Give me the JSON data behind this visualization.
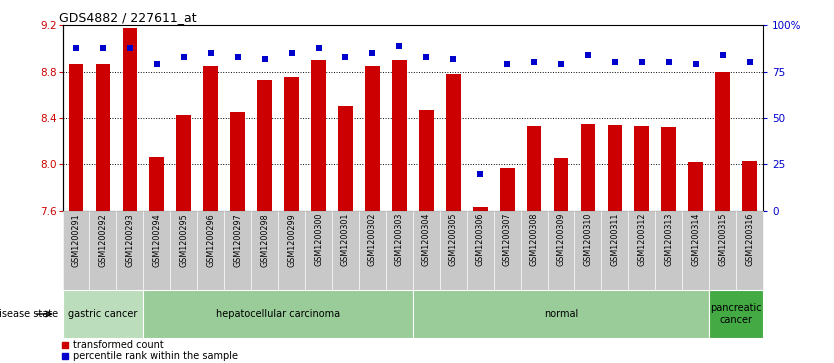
{
  "title": "GDS4882 / 227611_at",
  "samples": [
    "GSM1200291",
    "GSM1200292",
    "GSM1200293",
    "GSM1200294",
    "GSM1200295",
    "GSM1200296",
    "GSM1200297",
    "GSM1200298",
    "GSM1200299",
    "GSM1200300",
    "GSM1200301",
    "GSM1200302",
    "GSM1200303",
    "GSM1200304",
    "GSM1200305",
    "GSM1200306",
    "GSM1200307",
    "GSM1200308",
    "GSM1200309",
    "GSM1200310",
    "GSM1200311",
    "GSM1200312",
    "GSM1200313",
    "GSM1200314",
    "GSM1200315",
    "GSM1200316"
  ],
  "transformed_count": [
    8.87,
    8.87,
    9.18,
    8.06,
    8.43,
    8.85,
    8.45,
    8.73,
    8.75,
    8.9,
    8.5,
    8.85,
    8.9,
    8.47,
    8.78,
    7.63,
    7.97,
    8.33,
    8.05,
    8.35,
    8.34,
    8.33,
    8.32,
    8.02,
    8.8,
    8.03
  ],
  "percentile_rank": [
    88,
    88,
    88,
    79,
    83,
    85,
    83,
    82,
    85,
    88,
    83,
    85,
    89,
    83,
    82,
    20,
    79,
    80,
    79,
    84,
    80,
    80,
    80,
    79,
    84,
    80
  ],
  "ylim_left": [
    7.6,
    9.2
  ],
  "ylim_right": [
    0,
    100
  ],
  "yticks_left": [
    7.6,
    8.0,
    8.4,
    8.8,
    9.2
  ],
  "yticks_right": [
    0,
    25,
    50,
    75,
    100
  ],
  "ytick_labels_right": [
    "0",
    "25",
    "50",
    "75",
    "100%"
  ],
  "bar_color": "#cc0000",
  "dot_color": "#0000cc",
  "groups": [
    {
      "label": "gastric cancer",
      "start": 0,
      "end": 3,
      "color": "#bbddbb"
    },
    {
      "label": "hepatocellular carcinoma",
      "start": 3,
      "end": 13,
      "color": "#99cc99"
    },
    {
      "label": "normal",
      "start": 13,
      "end": 24,
      "color": "#99cc99"
    },
    {
      "label": "pancreatic\ncancer",
      "start": 24,
      "end": 26,
      "color": "#44aa44"
    }
  ],
  "legend_items": [
    {
      "label": "transformed count",
      "color": "#cc0000"
    },
    {
      "label": "percentile rank within the sample",
      "color": "#0000cc"
    }
  ],
  "disease_state_label": "disease state",
  "tick_color_left": "#cc0000",
  "tick_color_right": "#0000cc",
  "xtick_bg": "#c8c8c8",
  "group_border_color": "#ffffff"
}
